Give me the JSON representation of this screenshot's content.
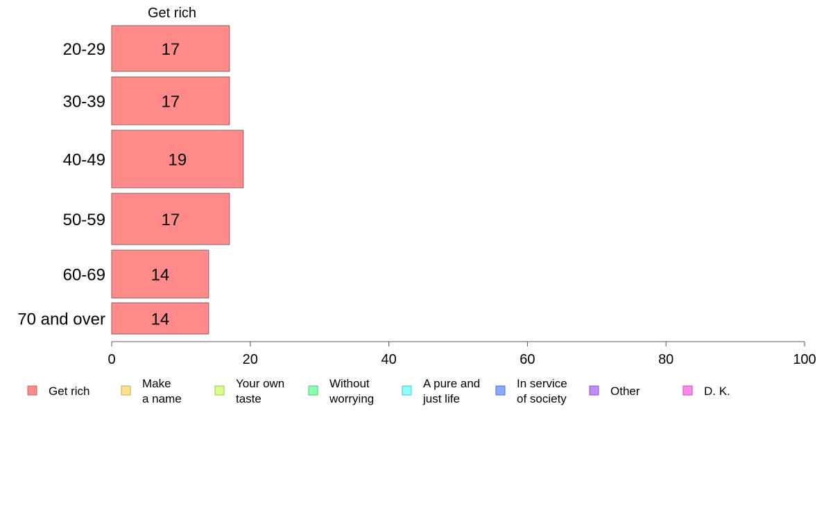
{
  "chart_data": {
    "type": "bar",
    "orientation": "horizontal",
    "title": "Get rich",
    "categories": [
      "20-29",
      "30-39",
      "40-49",
      "50-59",
      "60-69",
      "70 and over"
    ],
    "values": [
      17,
      17,
      19,
      17,
      14,
      14
    ],
    "xlim": [
      0,
      100
    ],
    "xticks": [
      0,
      20,
      40,
      60,
      80,
      100
    ],
    "grid": false,
    "bar_color": "#ff8a8a",
    "bar_edge_color": "#8f5a5a",
    "legend_position": "bottom",
    "legend": [
      {
        "label": [
          "Get rich"
        ],
        "color": "#ff8a8a",
        "edge": "#c06060"
      },
      {
        "label": [
          "Make",
          "a name"
        ],
        "color": "#ffe28a",
        "edge": "#c0a850"
      },
      {
        "label": [
          "Your own",
          "taste"
        ],
        "color": "#d8ff8a",
        "edge": "#9fbf60"
      },
      {
        "label": [
          "Without",
          "worrying"
        ],
        "color": "#8affb0",
        "edge": "#50c070"
      },
      {
        "label": [
          "A pure and",
          "just life"
        ],
        "color": "#8affff",
        "edge": "#50c0c0"
      },
      {
        "label": [
          "In service",
          "of society"
        ],
        "color": "#8aaaff",
        "edge": "#5070c0"
      },
      {
        "label": [
          "Other"
        ],
        "color": "#c08aff",
        "edge": "#8a50c0"
      },
      {
        "label": [
          "D. K."
        ],
        "color": "#ff8aee",
        "edge": "#c050b0"
      }
    ]
  }
}
